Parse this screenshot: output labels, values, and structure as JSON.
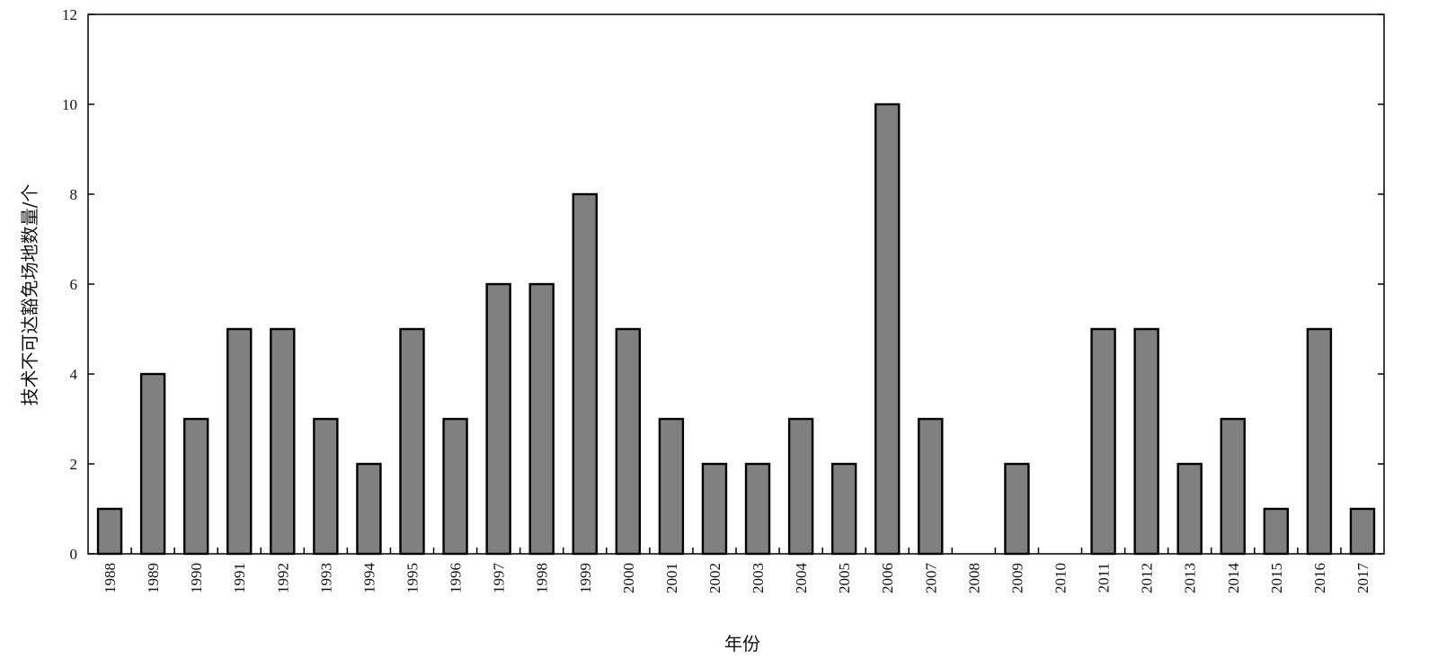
{
  "chart_data": {
    "type": "bar",
    "categories": [
      "1988",
      "1989",
      "1990",
      "1991",
      "1992",
      "1993",
      "1994",
      "1995",
      "1996",
      "1997",
      "1998",
      "1999",
      "2000",
      "2001",
      "2002",
      "2003",
      "2004",
      "2005",
      "2006",
      "2007",
      "2008",
      "2009",
      "2010",
      "2011",
      "2012",
      "2013",
      "2014",
      "2015",
      "2016",
      "2017"
    ],
    "values": [
      1,
      4,
      3,
      5,
      5,
      3,
      2,
      5,
      3,
      6,
      6,
      8,
      5,
      3,
      2,
      2,
      3,
      2,
      10,
      3,
      0,
      2,
      0,
      5,
      5,
      2,
      3,
      1,
      5,
      1
    ],
    "title": "",
    "xlabel": "年份",
    "ylabel": "技术不可达豁免场地数量/个",
    "ylim": [
      0,
      12
    ],
    "yticks": [
      0,
      2,
      4,
      6,
      8,
      10,
      12
    ],
    "grid": false,
    "legend": "none",
    "colors": {
      "bar_fill": "#808080",
      "bar_stroke": "#000000",
      "axis": "#000000"
    }
  }
}
